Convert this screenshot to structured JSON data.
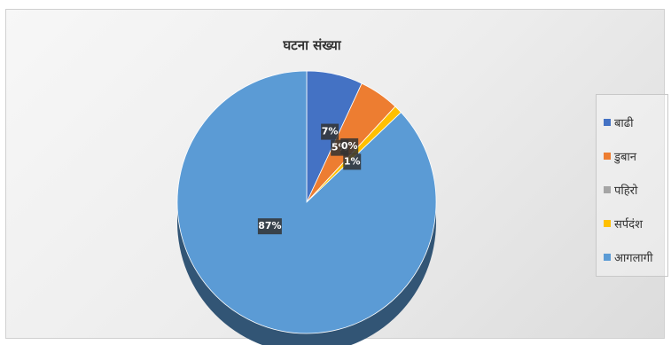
{
  "chart_data": {
    "type": "pie",
    "title": "घटना संख्या",
    "series": [
      {
        "name": "बाढी",
        "value": 7,
        "label": "7%",
        "color": "#4472C4"
      },
      {
        "name": "डुबान",
        "value": 5,
        "label": "5%",
        "color": "#ED7D31"
      },
      {
        "name": "पहिरो",
        "value": 0,
        "label": "0%",
        "color": "#A5A5A5"
      },
      {
        "name": "सर्पदंश",
        "value": 1,
        "label": "1%",
        "color": "#FFC000"
      },
      {
        "name": "आगलागी",
        "value": 87,
        "label": "87%",
        "color": "#5B9BD5"
      }
    ],
    "legend_position": "right"
  }
}
